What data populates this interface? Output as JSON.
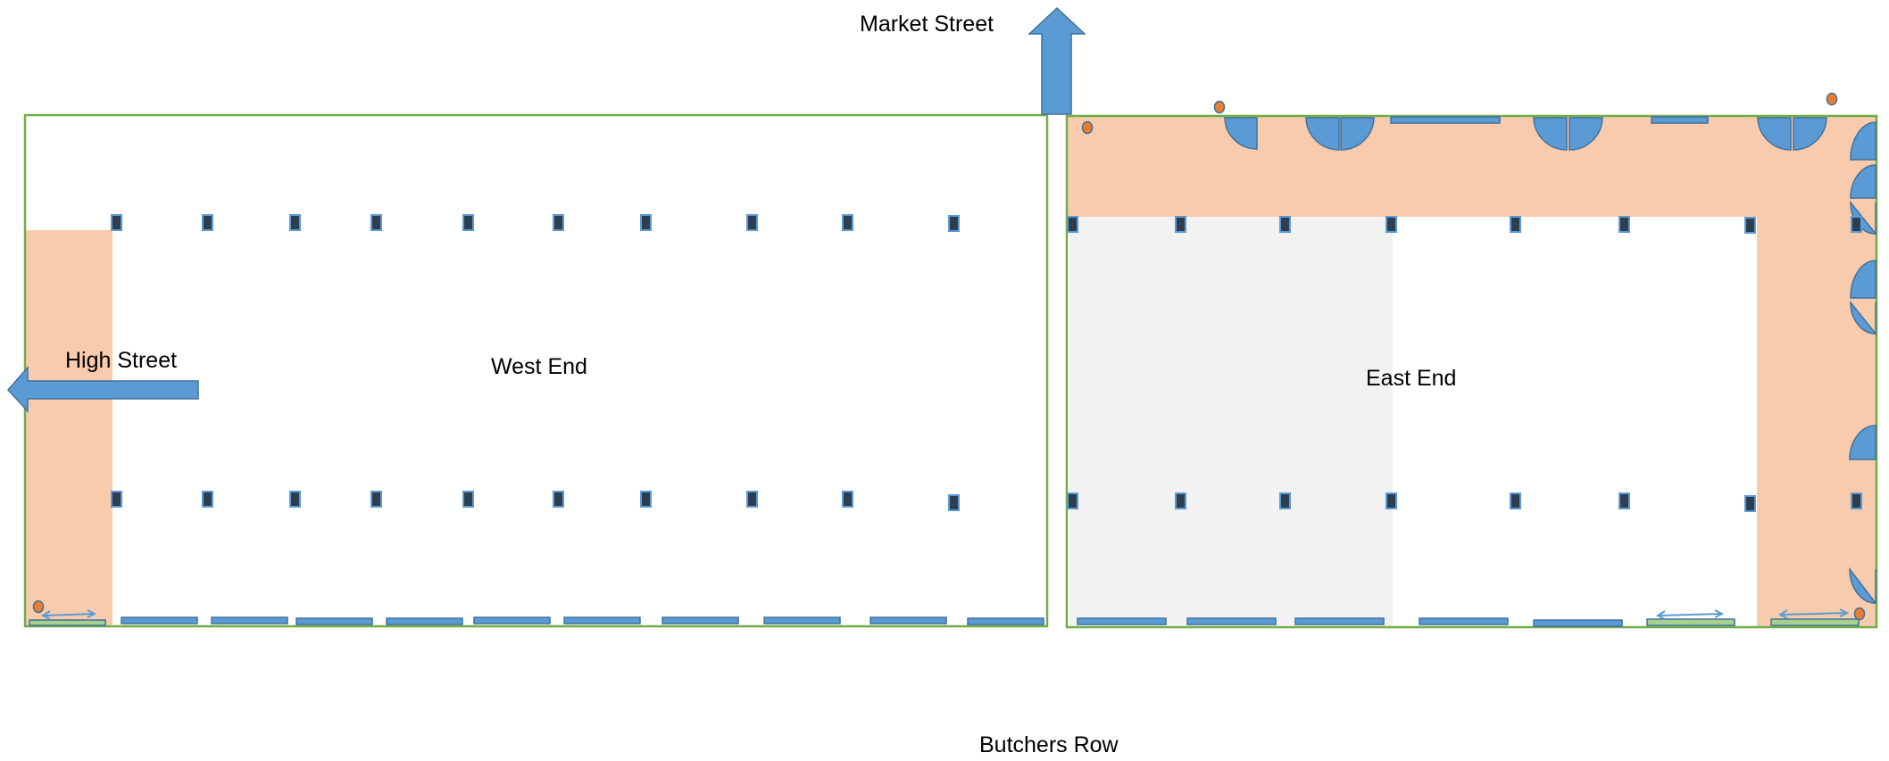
{
  "labels": {
    "market_street": "Market Street",
    "high_street": "High Street",
    "west_end": "West End",
    "east_end": "East End",
    "butchers_row": "Butchers Row"
  },
  "colors": {
    "outline": "#70ad47",
    "fill_blue": "#5b9bd5",
    "stroke_blue": "#41719c",
    "pillar": "#2f3e4e",
    "peach": "#f8cbad",
    "grey": "#f2f2f2",
    "dot": "#ed7d31",
    "text": "#000000"
  }
}
